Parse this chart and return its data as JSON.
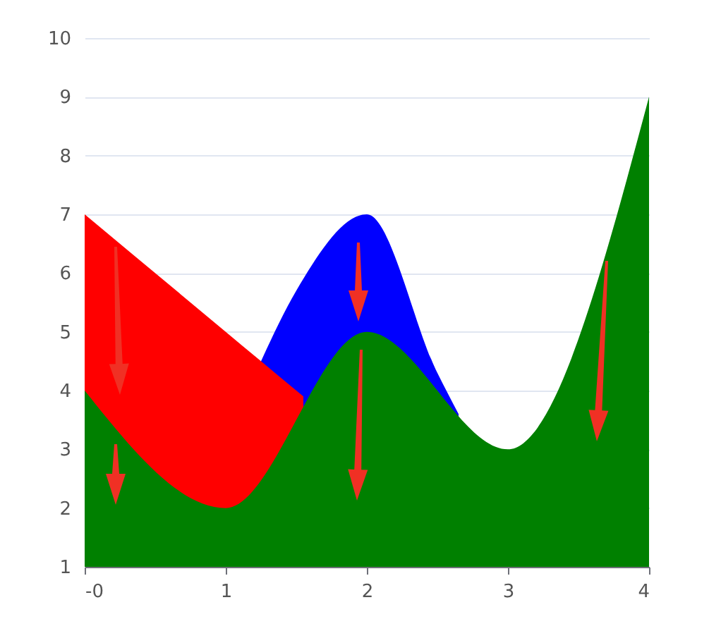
{
  "chart_data": {
    "type": "area",
    "x": [
      0,
      1,
      2,
      3,
      4
    ],
    "series": [
      {
        "color": "#0000ff",
        "x": [
          1.25,
          1.5,
          2,
          2.5,
          2.65
        ],
        "values": [
          4.5,
          5.7,
          7,
          4.3,
          3.6
        ]
      },
      {
        "color": "#ff0000",
        "x": [
          0,
          1,
          1.55
        ],
        "values": [
          7,
          5,
          3.9
        ]
      },
      {
        "color": "#008000",
        "values": [
          4,
          2,
          5,
          3,
          9
        ]
      }
    ],
    "xlim": [
      0,
      4
    ],
    "xticks": [
      {
        "value": 0,
        "label": "-0"
      },
      1,
      2,
      3,
      4
    ],
    "ylim": [
      1,
      10
    ],
    "yticks": [
      1,
      2,
      3,
      4,
      5,
      6,
      7,
      8,
      9,
      10
    ],
    "grid": "y",
    "legend": false
  }
}
